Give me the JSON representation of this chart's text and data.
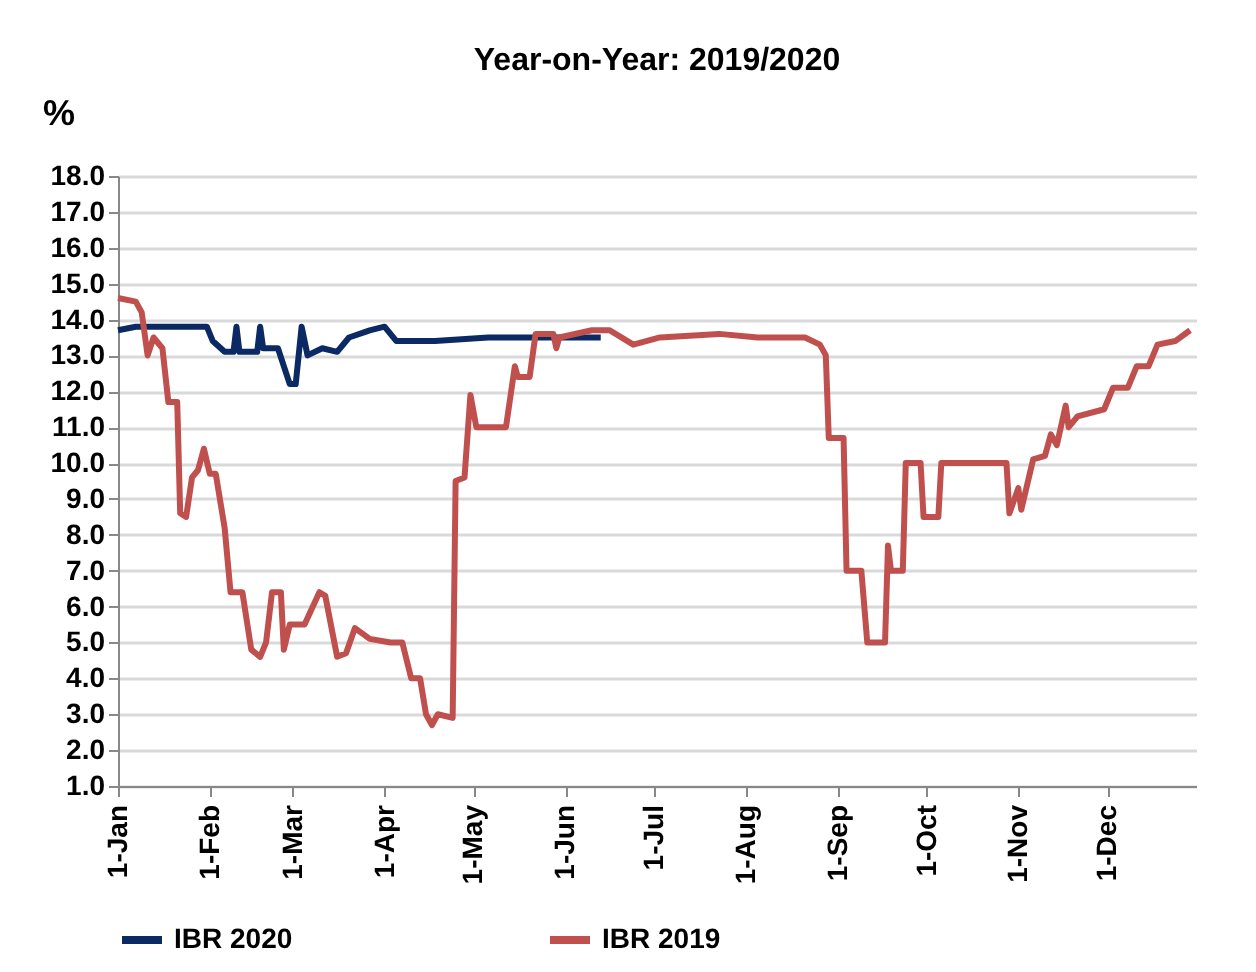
{
  "chart_data": {
    "type": "line",
    "title": "Year-on-Year: 2019/2020",
    "ylabel": "%",
    "xlim": [
      "--01-01",
      "--12-31"
    ],
    "xticks": [
      {
        "value": "--01-01",
        "label": "1-Jan"
      },
      {
        "value": "--02-01",
        "label": "1-Feb"
      },
      {
        "value": "--03-01",
        "label": "1-Mar"
      },
      {
        "value": "--04-01",
        "label": "1-Apr"
      },
      {
        "value": "--05-01",
        "label": "1-May"
      },
      {
        "value": "--06-01",
        "label": "1-Jun"
      },
      {
        "value": "--07-01",
        "label": "1-Jul"
      },
      {
        "value": "--08-01",
        "label": "1-Aug"
      },
      {
        "value": "--09-01",
        "label": "1-Sep"
      },
      {
        "value": "--10-01",
        "label": "1-Oct"
      },
      {
        "value": "--11-01",
        "label": "1-Nov"
      },
      {
        "value": "--12-01",
        "label": "1-Dec"
      }
    ],
    "ylim": [
      1,
      18
    ],
    "yticks": [
      {
        "value": 1,
        "label": "1.0"
      },
      {
        "value": 2,
        "label": "2.0"
      },
      {
        "value": 3,
        "label": "3.0"
      },
      {
        "value": 4,
        "label": "4.0"
      },
      {
        "value": 5,
        "label": "5.0"
      },
      {
        "value": 6,
        "label": "6.0"
      },
      {
        "value": 7,
        "label": "7.0"
      },
      {
        "value": 8,
        "label": "8.0"
      },
      {
        "value": 9,
        "label": "9.0"
      },
      {
        "value": 10,
        "label": "10.0"
      },
      {
        "value": 11,
        "label": "11.0"
      },
      {
        "value": 12,
        "label": "12.0"
      },
      {
        "value": 13,
        "label": "13.0"
      },
      {
        "value": 14,
        "label": "14.0"
      },
      {
        "value": 15,
        "label": "15.0"
      },
      {
        "value": 16,
        "label": "16.0"
      },
      {
        "value": 17,
        "label": "17.0"
      },
      {
        "value": 18,
        "label": "18.0"
      }
    ],
    "grid": "y",
    "legend": "bottom",
    "marker": "none",
    "line_style": "solid",
    "series": [
      {
        "name": "IBR 2020",
        "color": "#0b2a63",
        "x": [
          "--01-01",
          "--01-07",
          "--01-18",
          "--01-31",
          "--02-02",
          "--02-06",
          "--02-09",
          "--02-10",
          "--02-11",
          "--02-17",
          "--02-18",
          "--02-19",
          "--02-24",
          "--02-28",
          "--03-02",
          "--03-04",
          "--03-06",
          "--03-11",
          "--03-16",
          "--03-20",
          "--03-27",
          "--04-01",
          "--04-05",
          "--04-18",
          "--05-06",
          "--05-28",
          "--06-13"
        ],
        "values": [
          13.7,
          13.8,
          13.8,
          13.8,
          13.4,
          13.1,
          13.1,
          13.8,
          13.1,
          13.1,
          13.8,
          13.2,
          13.2,
          12.2,
          12.2,
          13.8,
          13.0,
          13.2,
          13.1,
          13.5,
          13.7,
          13.8,
          13.4,
          13.4,
          13.5,
          13.5,
          13.5
        ]
      },
      {
        "name": "IBR 2019",
        "color": "#c0504d",
        "x": [
          "--01-01",
          "--01-07",
          "--01-09",
          "--01-11",
          "--01-13",
          "--01-16",
          "--01-18",
          "--01-21",
          "--01-22",
          "--01-24",
          "--01-26",
          "--01-28",
          "--01-30",
          "--02-01",
          "--02-03",
          "--02-06",
          "--02-08",
          "--02-12",
          "--02-15",
          "--02-18",
          "--02-20",
          "--02-22",
          "--02-25",
          "--02-26",
          "--02-28",
          "--03-05",
          "--03-10",
          "--03-12",
          "--03-16",
          "--03-19",
          "--03-22",
          "--03-27",
          "--04-03",
          "--04-07",
          "--04-10",
          "--04-13",
          "--04-15",
          "--04-17",
          "--04-19",
          "--04-24",
          "--04-25",
          "--04-28",
          "--04-30",
          "--05-02",
          "--05-12",
          "--05-15",
          "--05-16",
          "--05-20",
          "--05-22",
          "--05-28",
          "--05-29",
          "--05-30",
          "--06-10",
          "--06-16",
          "--06-24",
          "--07-03",
          "--07-23",
          "--08-05",
          "--08-21",
          "--08-26",
          "--08-28",
          "--08-29",
          "--09-03",
          "--09-04",
          "--09-09",
          "--09-11",
          "--09-17",
          "--09-18",
          "--09-19",
          "--09-23",
          "--09-24",
          "--09-29",
          "--09-30",
          "--10-05",
          "--10-06",
          "--10-28",
          "--10-29",
          "--11-01",
          "--11-02",
          "--11-06",
          "--11-10",
          "--11-12",
          "--11-14",
          "--11-17",
          "--11-18",
          "--11-21",
          "--11-30",
          "--12-03",
          "--12-08",
          "--12-11",
          "--12-15",
          "--12-18",
          "--12-24",
          "--12-29"
        ],
        "values": [
          14.6,
          14.5,
          14.2,
          13.0,
          13.5,
          13.2,
          11.7,
          11.7,
          8.6,
          8.5,
          9.6,
          9.8,
          10.4,
          9.7,
          9.7,
          8.2,
          6.4,
          6.4,
          4.8,
          4.6,
          5.0,
          6.4,
          6.4,
          4.8,
          5.5,
          5.5,
          6.4,
          6.3,
          4.6,
          4.7,
          5.4,
          5.1,
          5.0,
          5.0,
          4.0,
          4.0,
          3.0,
          2.7,
          3.0,
          2.9,
          9.5,
          9.6,
          11.9,
          11.0,
          11.0,
          12.7,
          12.4,
          12.4,
          13.6,
          13.6,
          13.2,
          13.5,
          13.7,
          13.7,
          13.3,
          13.5,
          13.6,
          13.5,
          13.5,
          13.3,
          13.0,
          10.7,
          10.7,
          7.0,
          7.0,
          5.0,
          5.0,
          7.7,
          7.0,
          7.0,
          10.0,
          10.0,
          8.5,
          8.5,
          10.0,
          10.0,
          8.6,
          9.3,
          8.7,
          10.1,
          10.2,
          10.8,
          10.5,
          11.6,
          11.0,
          11.3,
          11.5,
          12.1,
          12.1,
          12.7,
          12.7,
          13.3,
          13.4,
          13.7
        ]
      }
    ]
  }
}
